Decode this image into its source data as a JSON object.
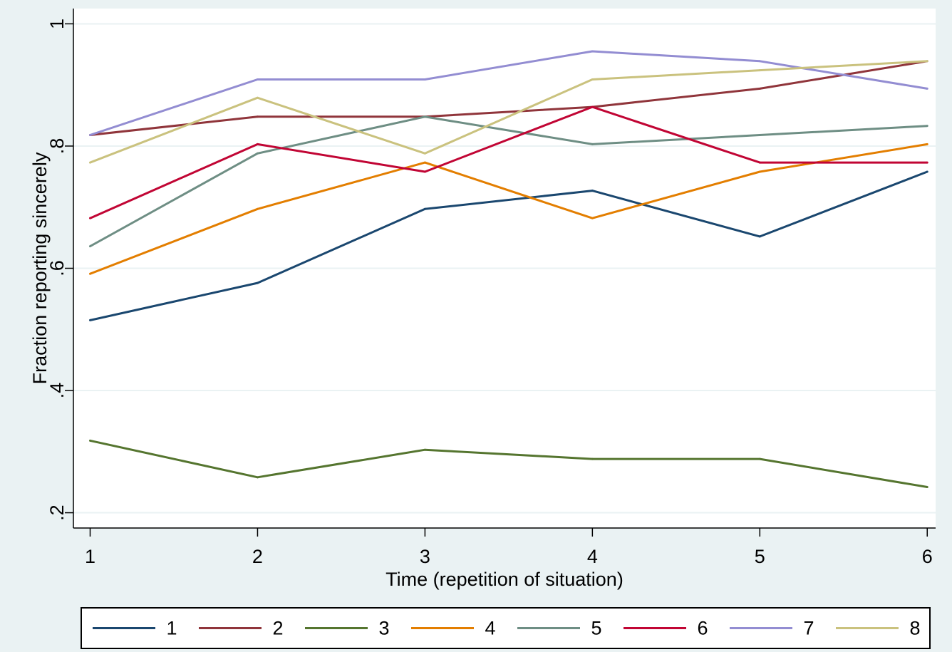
{
  "top_caption": "",
  "chart_data": {
    "type": "line",
    "title": "",
    "xlabel": "Time (repetition of situation)",
    "ylabel": "Fraction reporting sincerely",
    "x": [
      1,
      2,
      3,
      4,
      5,
      6
    ],
    "xticks": [
      "1",
      "2",
      "3",
      "4",
      "5",
      "6"
    ],
    "yticks": [
      ".2",
      ".4",
      ".6",
      ".8",
      "1"
    ],
    "ytick_values": [
      0.2,
      0.4,
      0.6,
      0.8,
      1.0
    ],
    "xlim": [
      0.9,
      6.05
    ],
    "ylim": [
      0.175,
      1.025
    ],
    "grid": true,
    "legend_position": "bottom",
    "background_color": "#eaf2f3",
    "plot_background_color": "#ffffff",
    "series": [
      {
        "name": "1",
        "color": "#1a476f",
        "values": [
          0.515,
          0.576,
          0.697,
          0.727,
          0.652,
          0.758
        ]
      },
      {
        "name": "2",
        "color": "#90353b",
        "values": [
          0.818,
          0.848,
          0.848,
          0.864,
          0.894,
          0.939
        ]
      },
      {
        "name": "3",
        "color": "#55752f",
        "values": [
          0.318,
          0.258,
          0.303,
          0.288,
          0.288,
          0.242
        ]
      },
      {
        "name": "4",
        "color": "#e37e00",
        "values": [
          0.591,
          0.697,
          0.773,
          0.682,
          0.758,
          0.803
        ]
      },
      {
        "name": "5",
        "color": "#6e8e84",
        "values": [
          0.636,
          0.788,
          0.848,
          0.803,
          0.818,
          0.833
        ]
      },
      {
        "name": "6",
        "color": "#c10534",
        "values": [
          0.682,
          0.803,
          0.758,
          0.864,
          0.773,
          0.773
        ]
      },
      {
        "name": "7",
        "color": "#938dd2",
        "values": [
          0.818,
          0.909,
          0.909,
          0.955,
          0.939,
          0.894
        ]
      },
      {
        "name": "8",
        "color": "#cac27e",
        "values": [
          0.773,
          0.879,
          0.788,
          0.909,
          0.924,
          0.939
        ]
      }
    ]
  }
}
